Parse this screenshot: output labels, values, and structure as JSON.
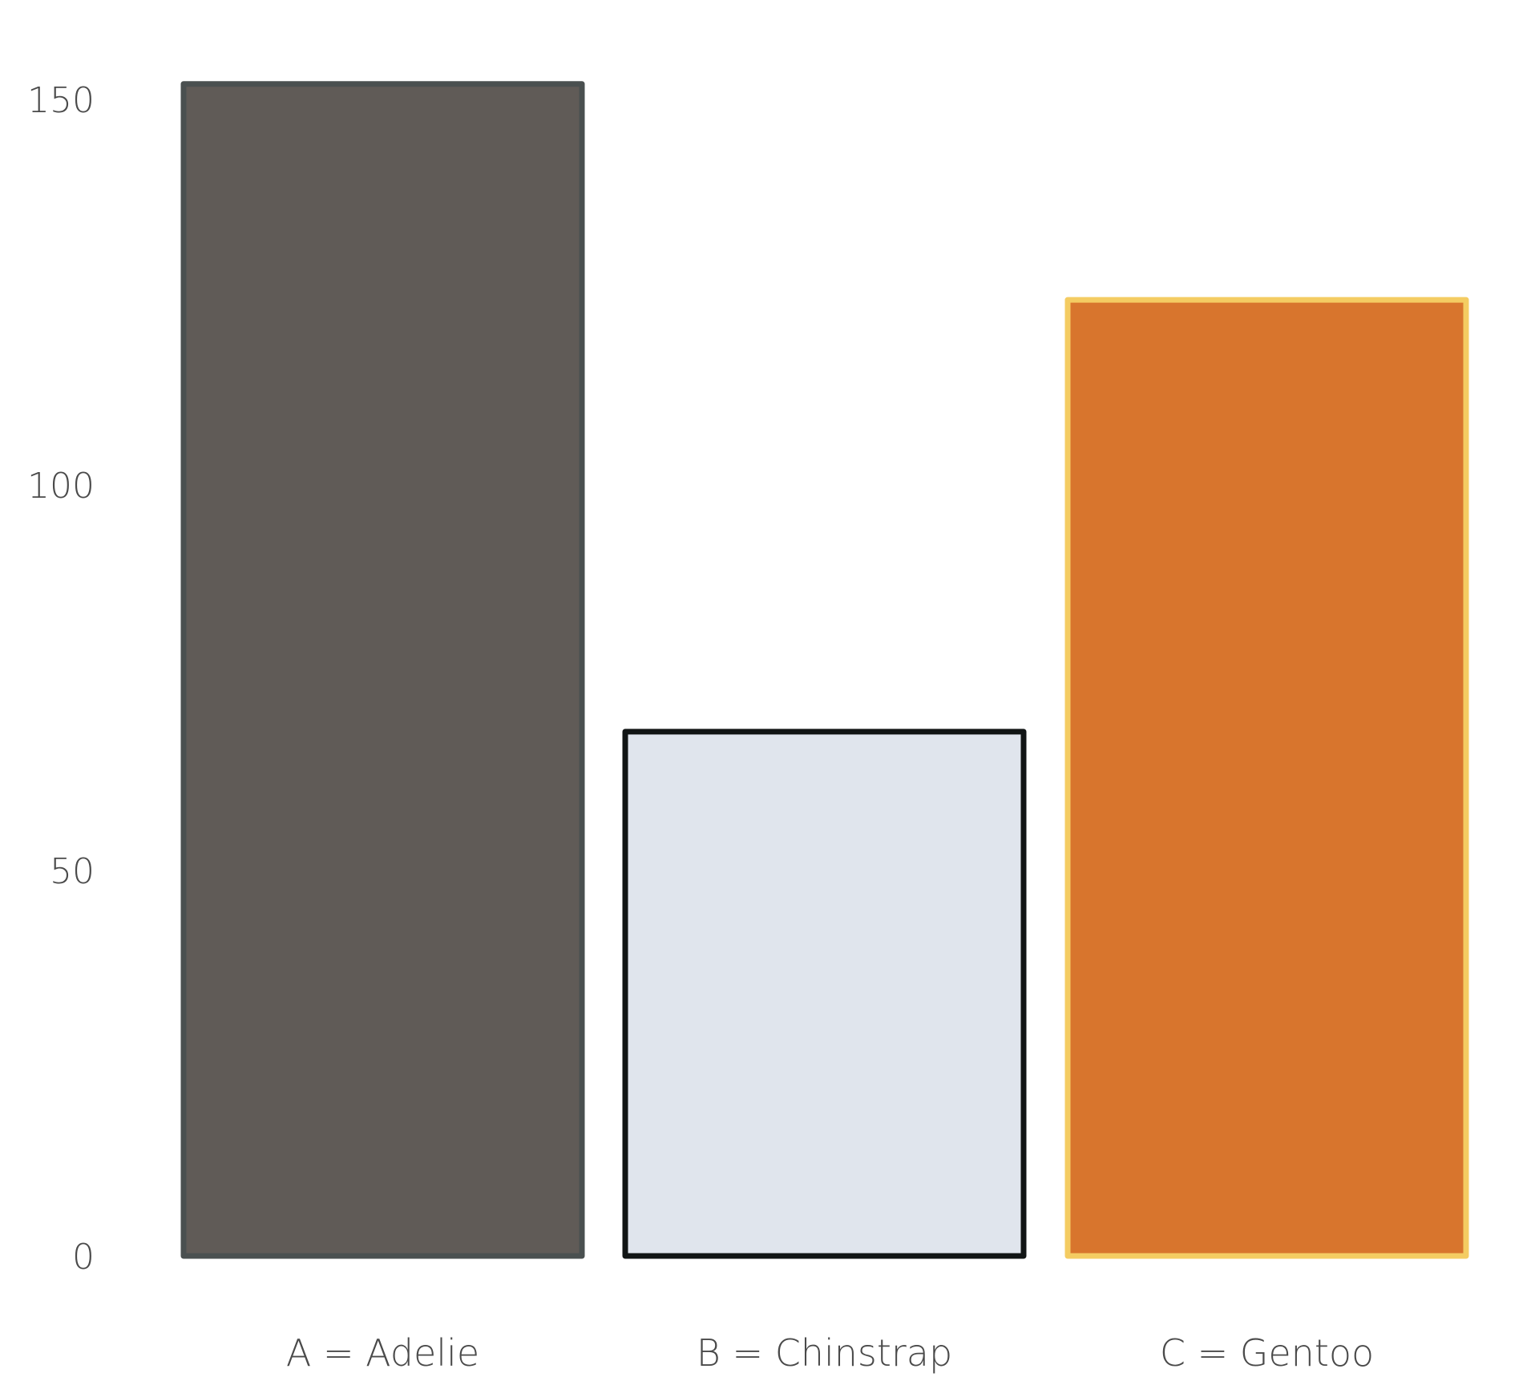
{
  "chart_data": {
    "type": "bar",
    "categories": [
      "A = Adelie",
      "B = Chinstrap",
      "C = Gentoo"
    ],
    "values": [
      152,
      68,
      124
    ],
    "title": "",
    "xlabel": "",
    "ylabel": "",
    "ylim": [
      0,
      150
    ],
    "yticks": [
      0,
      50,
      100,
      150
    ],
    "ytick_labels": [
      "0",
      "50",
      "100",
      "150"
    ],
    "grid": false,
    "bar_fills": [
      "#605b57",
      "#e0e5ed",
      "#d8752d"
    ],
    "bar_strokes": [
      "#4a5050",
      "#111515",
      "#f4cc62"
    ]
  }
}
